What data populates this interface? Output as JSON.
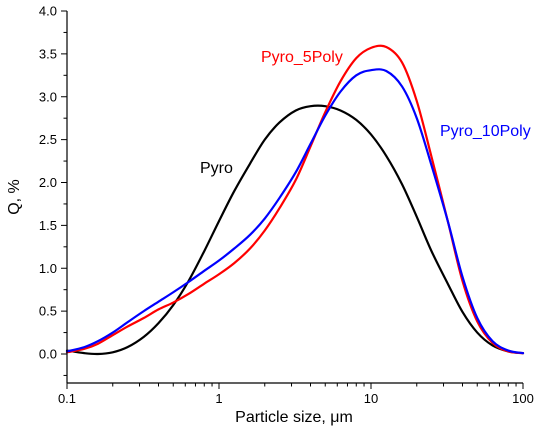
{
  "chart_data": {
    "type": "line",
    "title": "",
    "xlabel": "Particle size, μm",
    "ylabel": "Q, %",
    "xscale": "log",
    "xlim": [
      0.1,
      100
    ],
    "ylim": [
      -0.3,
      4.0
    ],
    "x_ticks": [
      "0.1",
      "1",
      "10",
      "100"
    ],
    "y_ticks": [
      "0.0",
      "0.5",
      "1.0",
      "1.5",
      "2.0",
      "2.5",
      "3.0",
      "3.5",
      "4.0"
    ],
    "grid": false,
    "legend": "inline labels",
    "series": [
      {
        "name": "Pyro",
        "color": "#000000",
        "x": [
          0.1,
          0.13,
          0.16,
          0.2,
          0.25,
          0.32,
          0.4,
          0.5,
          0.63,
          0.8,
          1.0,
          1.26,
          1.6,
          2.0,
          2.5,
          3.2,
          4.0,
          5.0,
          6.3,
          8.0,
          10,
          12.6,
          16,
          20,
          25,
          32,
          40,
          50,
          63,
          80,
          100
        ],
        "y": [
          0.04,
          0.01,
          0.0,
          0.02,
          0.08,
          0.2,
          0.36,
          0.57,
          0.85,
          1.2,
          1.55,
          1.9,
          2.22,
          2.5,
          2.7,
          2.84,
          2.89,
          2.89,
          2.84,
          2.73,
          2.56,
          2.31,
          1.98,
          1.6,
          1.2,
          0.82,
          0.49,
          0.25,
          0.1,
          0.03,
          0.01
        ]
      },
      {
        "name": "Pyro_5Poly",
        "color": "#ff0000",
        "x": [
          0.1,
          0.13,
          0.16,
          0.2,
          0.25,
          0.32,
          0.4,
          0.5,
          0.63,
          0.8,
          1.0,
          1.26,
          1.6,
          2.0,
          2.5,
          3.2,
          4.0,
          5.0,
          6.3,
          8.0,
          10,
          12.6,
          16,
          20,
          25,
          32,
          40,
          50,
          63,
          80,
          100
        ],
        "y": [
          0.02,
          0.06,
          0.12,
          0.22,
          0.32,
          0.42,
          0.52,
          0.6,
          0.7,
          0.82,
          0.93,
          1.06,
          1.23,
          1.44,
          1.7,
          2.03,
          2.42,
          2.82,
          3.18,
          3.45,
          3.57,
          3.58,
          3.4,
          2.95,
          2.3,
          1.55,
          0.85,
          0.38,
          0.13,
          0.03,
          0.01
        ]
      },
      {
        "name": "Pyro_10Poly",
        "color": "#0000ff",
        "x": [
          0.1,
          0.13,
          0.16,
          0.2,
          0.25,
          0.32,
          0.4,
          0.5,
          0.63,
          0.8,
          1.0,
          1.26,
          1.6,
          2.0,
          2.5,
          3.2,
          4.0,
          5.0,
          6.3,
          8.0,
          10,
          12.6,
          16,
          20,
          25,
          32,
          40,
          50,
          63,
          80,
          100
        ],
        "y": [
          0.03,
          0.08,
          0.15,
          0.25,
          0.37,
          0.5,
          0.61,
          0.72,
          0.84,
          0.97,
          1.09,
          1.23,
          1.39,
          1.58,
          1.82,
          2.12,
          2.45,
          2.78,
          3.06,
          3.25,
          3.31,
          3.3,
          3.12,
          2.75,
          2.2,
          1.55,
          0.9,
          0.42,
          0.15,
          0.04,
          0.01
        ]
      }
    ]
  }
}
